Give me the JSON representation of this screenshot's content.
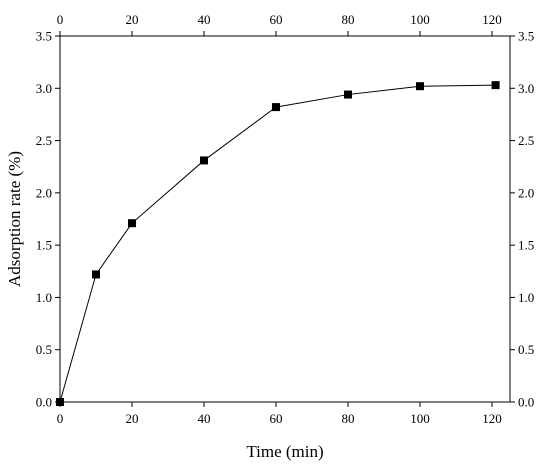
{
  "chart_data": {
    "type": "line",
    "xlabel": "Time (min)",
    "ylabel": "Adsorption rate (%)",
    "xlim": [
      0,
      125
    ],
    "ylim": [
      0,
      3.5
    ],
    "xticks": [
      0,
      20,
      40,
      60,
      80,
      100,
      120
    ],
    "yticks": [
      0.0,
      0.5,
      1.0,
      1.5,
      2.0,
      2.5,
      3.0,
      3.5
    ],
    "x_tick_labels": [
      "0",
      "20",
      "40",
      "60",
      "80",
      "100",
      "120"
    ],
    "y_tick_labels": [
      "0.0",
      "0.5",
      "1.0",
      "1.5",
      "2.0",
      "2.5",
      "3.0",
      "3.5"
    ],
    "mirror_axes": true,
    "grid": false,
    "legend": false,
    "marker": "square",
    "series": [
      {
        "x": [
          0,
          10,
          20,
          40,
          60,
          80,
          100,
          121
        ],
        "y": [
          0.0,
          1.22,
          1.71,
          2.31,
          2.82,
          2.94,
          3.02,
          3.03
        ]
      }
    ],
    "colors": {
      "line": "#000000",
      "marker": "#000000",
      "axes": "#000000"
    }
  }
}
